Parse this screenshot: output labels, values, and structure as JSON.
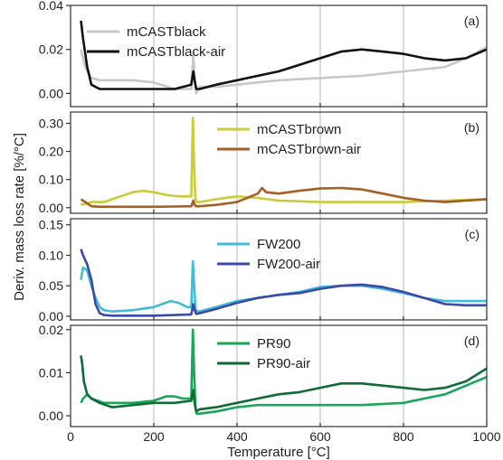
{
  "figure": {
    "xlabel": "Temperature [°C]",
    "ylabel": "Deriv. mass loss rate [%/°C]",
    "xticks": [
      "0",
      "200",
      "400",
      "600",
      "800",
      "1000"
    ]
  },
  "chart_data": [
    {
      "type": "line",
      "panel_label": "(a)",
      "xlim": [
        0,
        1000
      ],
      "ylim": [
        -0.006,
        0.04
      ],
      "yticks": [
        0.0,
        0.02,
        0.04
      ],
      "ytick_labels": [
        "0.00",
        "0.02",
        "0.04"
      ],
      "legend_placement": "top-left",
      "series": [
        {
          "name": "mCASTblack",
          "color": "#c8c8c8",
          "x": [
            25,
            35,
            50,
            70,
            100,
            150,
            200,
            250,
            290,
            295,
            298,
            302,
            310,
            350,
            400,
            450,
            500,
            600,
            700,
            800,
            900,
            950,
            1000
          ],
          "y": [
            0.02,
            0.012,
            0.007,
            0.006,
            0.006,
            0.006,
            0.005,
            0.002,
            0.002,
            0.018,
            0.007,
            0.0,
            0.003,
            0.003,
            0.004,
            0.005,
            0.006,
            0.007,
            0.008,
            0.01,
            0.012,
            0.016,
            0.021
          ]
        },
        {
          "name": "mCASTblack-air",
          "color": "#111111",
          "x": [
            25,
            30,
            40,
            50,
            70,
            100,
            150,
            200,
            250,
            290,
            295,
            298,
            302,
            310,
            350,
            400,
            450,
            500,
            550,
            600,
            650,
            700,
            750,
            800,
            850,
            900,
            950,
            1000
          ],
          "y": [
            0.033,
            0.025,
            0.012,
            0.004,
            0.002,
            0.002,
            0.002,
            0.002,
            0.002,
            0.004,
            0.01,
            0.006,
            0.002,
            0.002,
            0.004,
            0.006,
            0.008,
            0.01,
            0.013,
            0.016,
            0.019,
            0.02,
            0.019,
            0.018,
            0.016,
            0.015,
            0.016,
            0.02
          ]
        }
      ]
    },
    {
      "type": "line",
      "panel_label": "(b)",
      "xlim": [
        0,
        1000
      ],
      "ylim": [
        -0.02,
        0.34
      ],
      "yticks": [
        0.0,
        0.1,
        0.2,
        0.3
      ],
      "ytick_labels": [
        "0.00",
        "0.10",
        "0.20",
        "0.30"
      ],
      "legend_placement": "top-right",
      "series": [
        {
          "name": "mCASTbrown",
          "color": "#c8cc3a",
          "x": [
            25,
            50,
            80,
            100,
            130,
            150,
            175,
            200,
            230,
            260,
            290,
            294,
            297,
            300,
            303,
            310,
            350,
            400,
            450,
            500,
            600,
            700,
            800,
            900,
            1000
          ],
          "y": [
            0.01,
            0.02,
            0.02,
            0.03,
            0.045,
            0.055,
            0.06,
            0.055,
            0.045,
            0.04,
            0.04,
            0.32,
            0.15,
            0.03,
            0.02,
            0.02,
            0.03,
            0.04,
            0.035,
            0.025,
            0.02,
            0.02,
            0.02,
            0.025,
            0.03
          ]
        },
        {
          "name": "mCASTbrown-air",
          "color": "#a65f23",
          "x": [
            25,
            30,
            40,
            50,
            70,
            100,
            150,
            200,
            250,
            290,
            295,
            298,
            302,
            310,
            350,
            400,
            450,
            460,
            470,
            500,
            550,
            600,
            650,
            700,
            750,
            800,
            850,
            900,
            950,
            1000
          ],
          "y": [
            0.03,
            0.025,
            0.015,
            0.005,
            0.003,
            0.003,
            0.003,
            0.003,
            0.004,
            0.005,
            0.025,
            0.01,
            0.005,
            0.005,
            0.01,
            0.02,
            0.05,
            0.07,
            0.055,
            0.05,
            0.06,
            0.068,
            0.07,
            0.065,
            0.05,
            0.035,
            0.025,
            0.02,
            0.025,
            0.03
          ]
        }
      ]
    },
    {
      "type": "line",
      "panel_label": "(c)",
      "xlim": [
        0,
        1000
      ],
      "ylim": [
        -0.006,
        0.16
      ],
      "yticks": [
        0.0,
        0.05,
        0.1,
        0.15
      ],
      "ytick_labels": [
        "0.00",
        "0.05",
        "0.10",
        "0.15"
      ],
      "legend_placement": "top-right",
      "series": [
        {
          "name": "FW200",
          "color": "#41bcd8",
          "x": [
            25,
            30,
            40,
            50,
            60,
            70,
            80,
            100,
            150,
            200,
            220,
            240,
            260,
            280,
            290,
            294,
            297,
            300,
            303,
            310,
            350,
            400,
            450,
            500,
            550,
            600,
            650,
            700,
            750,
            800,
            850,
            900,
            950,
            1000
          ],
          "y": [
            0.06,
            0.08,
            0.075,
            0.05,
            0.03,
            0.015,
            0.01,
            0.008,
            0.01,
            0.015,
            0.02,
            0.025,
            0.022,
            0.015,
            0.015,
            0.09,
            0.05,
            0.015,
            0.008,
            0.008,
            0.015,
            0.025,
            0.03,
            0.035,
            0.04,
            0.048,
            0.05,
            0.05,
            0.045,
            0.038,
            0.03,
            0.025,
            0.025,
            0.025
          ]
        },
        {
          "name": "FW200-air",
          "color": "#3b4aa8",
          "x": [
            25,
            30,
            40,
            50,
            60,
            70,
            80,
            100,
            150,
            200,
            250,
            290,
            295,
            298,
            302,
            310,
            350,
            400,
            450,
            500,
            550,
            600,
            650,
            700,
            750,
            800,
            850,
            900,
            950,
            1000
          ],
          "y": [
            0.11,
            0.1,
            0.085,
            0.06,
            0.02,
            0.005,
            0.002,
            0.001,
            0.001,
            0.001,
            0.002,
            0.003,
            0.02,
            0.01,
            0.004,
            0.005,
            0.012,
            0.022,
            0.03,
            0.035,
            0.038,
            0.045,
            0.05,
            0.052,
            0.048,
            0.04,
            0.03,
            0.02,
            0.018,
            0.018
          ]
        }
      ]
    },
    {
      "type": "line",
      "panel_label": "(d)",
      "xlim": [
        0,
        1000
      ],
      "ylim": [
        -0.0025,
        0.021
      ],
      "yticks": [
        0.0,
        0.01,
        0.02
      ],
      "ytick_labels": [
        "0.00",
        "0.01",
        "0.02"
      ],
      "legend_placement": "top-center",
      "series": [
        {
          "name": "PR90",
          "color": "#1aa65a",
          "x": [
            25,
            30,
            40,
            50,
            80,
            100,
            150,
            200,
            230,
            250,
            270,
            290,
            294,
            297,
            300,
            303,
            310,
            350,
            400,
            450,
            500,
            600,
            700,
            800,
            850,
            900,
            950,
            1000
          ],
          "y": [
            0.003,
            0.004,
            0.005,
            0.004,
            0.003,
            0.003,
            0.003,
            0.0035,
            0.0045,
            0.0045,
            0.004,
            0.004,
            0.02,
            0.01,
            0.002,
            0.0005,
            0.0005,
            0.001,
            0.002,
            0.0025,
            0.0025,
            0.0025,
            0.0025,
            0.003,
            0.004,
            0.005,
            0.007,
            0.009
          ]
        },
        {
          "name": "PR90-air",
          "color": "#0d6b34",
          "x": [
            25,
            28,
            32,
            40,
            50,
            70,
            100,
            150,
            200,
            250,
            290,
            295,
            298,
            302,
            310,
            350,
            400,
            450,
            500,
            550,
            600,
            650,
            700,
            750,
            800,
            850,
            900,
            950,
            1000
          ],
          "y": [
            0.014,
            0.012,
            0.008,
            0.005,
            0.004,
            0.003,
            0.002,
            0.0025,
            0.003,
            0.003,
            0.0035,
            0.006,
            0.003,
            0.001,
            0.0015,
            0.002,
            0.003,
            0.004,
            0.005,
            0.0055,
            0.0065,
            0.0075,
            0.0075,
            0.007,
            0.0065,
            0.006,
            0.0065,
            0.008,
            0.011
          ]
        }
      ]
    }
  ]
}
